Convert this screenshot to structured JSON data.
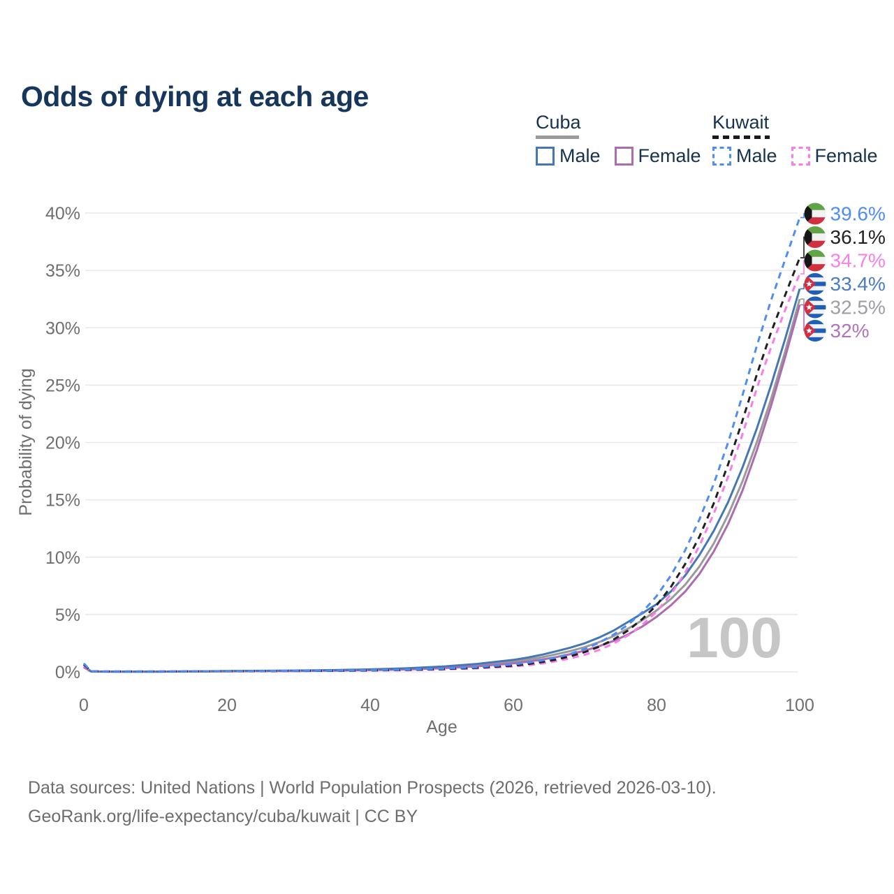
{
  "title": "Odds of dying at each age",
  "legend": {
    "groups": [
      {
        "title": "Cuba",
        "underline_style": "solid",
        "underline_color": "#9a9a9a",
        "items": [
          {
            "label": "Male",
            "color": "#4477b4",
            "dash": false
          },
          {
            "label": "Female",
            "color": "#ad6cb0",
            "dash": false
          }
        ]
      },
      {
        "title": "Kuwait",
        "underline_style": "dashed",
        "underline_color": "#1a1a1a",
        "items": [
          {
            "label": "Male",
            "color": "#4d8df5",
            "dash": true
          },
          {
            "label": "Female",
            "color": "#fb7ce8",
            "dash": true
          }
        ]
      }
    ]
  },
  "footer": {
    "line1": "Data sources: United Nations | World Population Prospects (2026, retrieved 2026-03-10).",
    "line2": "GeoRank.org/life-expectancy/cuba/kuwait | CC BY"
  },
  "chart_data": {
    "type": "line",
    "xlabel": "Age",
    "ylabel": "Probability of dying",
    "xlim": [
      0,
      100
    ],
    "ylim": [
      0,
      40
    ],
    "x_ticks": [
      0,
      20,
      40,
      60,
      80,
      100
    ],
    "y_ticks": [
      0,
      5,
      10,
      15,
      20,
      25,
      30,
      35,
      40
    ],
    "y_tick_suffix": "%",
    "grid": "horizontal",
    "grid_color": "#e7e7e7",
    "axis_text_color": "#6f6f6f",
    "watermark": "100",
    "watermark_color": "#c6c6c6",
    "x": [
      0,
      1,
      2,
      5,
      10,
      15,
      20,
      25,
      30,
      35,
      40,
      45,
      50,
      55,
      60,
      62,
      64,
      66,
      68,
      70,
      72,
      74,
      76,
      78,
      80,
      82,
      84,
      86,
      88,
      90,
      92,
      94,
      96,
      98,
      100
    ],
    "series": [
      {
        "name": "Cuba Total",
        "country": "cuba",
        "sex": "total",
        "color": "#9a9a9a",
        "dash": false,
        "end_label": "32.5%",
        "end_value": 32.5,
        "label_color": "#9e9ea3",
        "values": [
          0.45,
          0.035,
          0.028,
          0.022,
          0.022,
          0.042,
          0.065,
          0.085,
          0.1,
          0.135,
          0.185,
          0.26,
          0.39,
          0.59,
          0.89,
          1.07,
          1.28,
          1.54,
          1.82,
          2.17,
          2.6,
          3.12,
          3.76,
          4.5,
          5.35,
          6.35,
          7.6,
          9.2,
          11.2,
          13.7,
          16.6,
          20.0,
          23.8,
          28.0,
          32.5
        ]
      },
      {
        "name": "Cuba Female",
        "country": "cuba",
        "sex": "female",
        "color": "#ad6cb0",
        "dash": false,
        "end_label": "32%",
        "end_value": 32.0,
        "label_color": "#b173bb",
        "values": [
          0.4,
          0.03,
          0.025,
          0.02,
          0.02,
          0.033,
          0.05,
          0.065,
          0.08,
          0.11,
          0.15,
          0.215,
          0.325,
          0.49,
          0.74,
          0.89,
          1.07,
          1.29,
          1.55,
          1.86,
          2.24,
          2.7,
          3.26,
          3.95,
          4.8,
          5.8,
          7.0,
          8.55,
          10.5,
          12.9,
          15.8,
          19.3,
          23.2,
          27.5,
          32.0
        ]
      },
      {
        "name": "Cuba Male",
        "country": "cuba",
        "sex": "male",
        "color": "#4477b4",
        "dash": false,
        "end_label": "33.4%",
        "end_value": 33.4,
        "label_color": "#4c7bc4",
        "values": [
          0.55,
          0.04,
          0.03,
          0.025,
          0.025,
          0.05,
          0.08,
          0.1,
          0.12,
          0.16,
          0.22,
          0.31,
          0.46,
          0.7,
          1.05,
          1.25,
          1.5,
          1.8,
          2.12,
          2.5,
          3.0,
          3.6,
          4.35,
          5.1,
          5.9,
          7.0,
          8.4,
          10.2,
          12.3,
          14.8,
          17.8,
          21.2,
          25.0,
          29.1,
          33.4
        ]
      },
      {
        "name": "Kuwait Female",
        "country": "kuwait",
        "sex": "female",
        "color": "#fb7ce8",
        "dash": true,
        "end_label": "34.7%",
        "end_value": 34.7,
        "label_color": "#f87fe7",
        "values": [
          0.55,
          0.05,
          0.04,
          0.03,
          0.03,
          0.04,
          0.05,
          0.06,
          0.075,
          0.09,
          0.115,
          0.15,
          0.21,
          0.31,
          0.47,
          0.58,
          0.73,
          0.93,
          1.18,
          1.5,
          1.92,
          2.47,
          3.18,
          4.1,
          5.25,
          6.75,
          8.65,
          11.0,
          13.8,
          17.0,
          20.7,
          24.7,
          28.3,
          31.6,
          34.7
        ]
      },
      {
        "name": "Kuwait Total",
        "country": "kuwait",
        "sex": "total",
        "color": "#1f1f1f",
        "dash": true,
        "end_label": "36.1%",
        "end_value": 36.1,
        "label_color": "#212121",
        "values": [
          0.65,
          0.055,
          0.045,
          0.035,
          0.035,
          0.045,
          0.06,
          0.07,
          0.085,
          0.1,
          0.13,
          0.17,
          0.24,
          0.36,
          0.55,
          0.68,
          0.86,
          1.08,
          1.37,
          1.73,
          2.2,
          2.82,
          3.6,
          4.6,
          5.8,
          7.4,
          9.4,
          11.8,
          14.7,
          18.1,
          21.9,
          25.9,
          29.6,
          32.9,
          36.1
        ]
      },
      {
        "name": "Kuwait Male",
        "country": "kuwait",
        "sex": "male",
        "color": "#4d8df5",
        "dash": true,
        "end_label": "39.6%",
        "end_value": 39.6,
        "label_color": "#4d8df5",
        "values": [
          0.75,
          0.06,
          0.05,
          0.04,
          0.04,
          0.05,
          0.07,
          0.085,
          0.1,
          0.12,
          0.15,
          0.2,
          0.28,
          0.42,
          0.65,
          0.8,
          1.0,
          1.26,
          1.58,
          2.0,
          2.55,
          3.25,
          4.1,
          5.2,
          6.6,
          8.4,
          10.6,
          13.3,
          16.4,
          20.0,
          24.1,
          28.4,
          32.4,
          36.0,
          39.6
        ]
      }
    ],
    "flag_colors": {
      "kuwait": {
        "green": "#62a347",
        "white": "#f2f2f2",
        "red": "#d22f41",
        "black": "#161616"
      },
      "cuba": {
        "blue": "#1d5fb8",
        "white": "#f2f2f2",
        "red": "#d22f41",
        "star": "#ffffff"
      }
    }
  }
}
